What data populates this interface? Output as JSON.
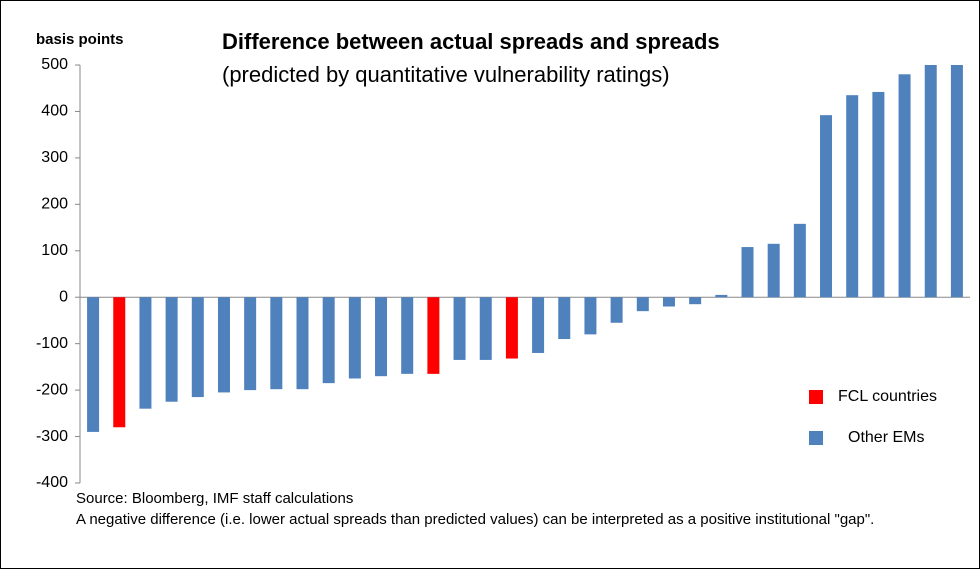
{
  "chart_data": {
    "type": "bar",
    "title": "Difference between actual spreads and spreads",
    "subtitle": "(predicted by  quantitative vulnerability ratings)",
    "y_label": "basis points",
    "source": "Source: Bloomberg, IMF staff calculations",
    "note": "A negative difference  (i.e. lower actual spreads than predicted values) can be interpreted as a positive institutional \"gap\".",
    "categories": [
      null,
      null,
      null,
      null,
      null,
      null,
      null,
      null,
      null,
      null,
      null,
      null,
      null,
      null,
      null,
      null,
      null,
      null,
      null,
      null,
      null,
      null,
      null,
      null,
      null,
      null,
      null,
      null,
      null,
      null,
      null,
      null,
      null,
      null
    ],
    "series": [
      {
        "name": "FCL countries",
        "color": "#ff0000",
        "values": [
          null,
          -280,
          null,
          null,
          null,
          null,
          null,
          null,
          null,
          null,
          null,
          null,
          null,
          -165,
          null,
          null,
          -132,
          null,
          null,
          null,
          null,
          null,
          null,
          null,
          null,
          null,
          null,
          null,
          null,
          null,
          null,
          null,
          null,
          null
        ]
      },
      {
        "name": "Other EMs",
        "color": "#4f81bd",
        "values": [
          -290,
          null,
          -240,
          -225,
          -215,
          -205,
          -200,
          -198,
          -198,
          -185,
          -175,
          -170,
          -165,
          null,
          -135,
          -135,
          null,
          -120,
          -90,
          -80,
          -55,
          -30,
          -20,
          -15,
          5,
          108,
          115,
          158,
          392,
          435,
          442,
          480,
          500,
          500
        ]
      }
    ],
    "ylim": [
      -400,
      500
    ],
    "yticks": [
      -400,
      -300,
      -200,
      -100,
      0,
      100,
      200,
      300,
      400,
      500
    ],
    "grid": false,
    "legend": "right"
  }
}
